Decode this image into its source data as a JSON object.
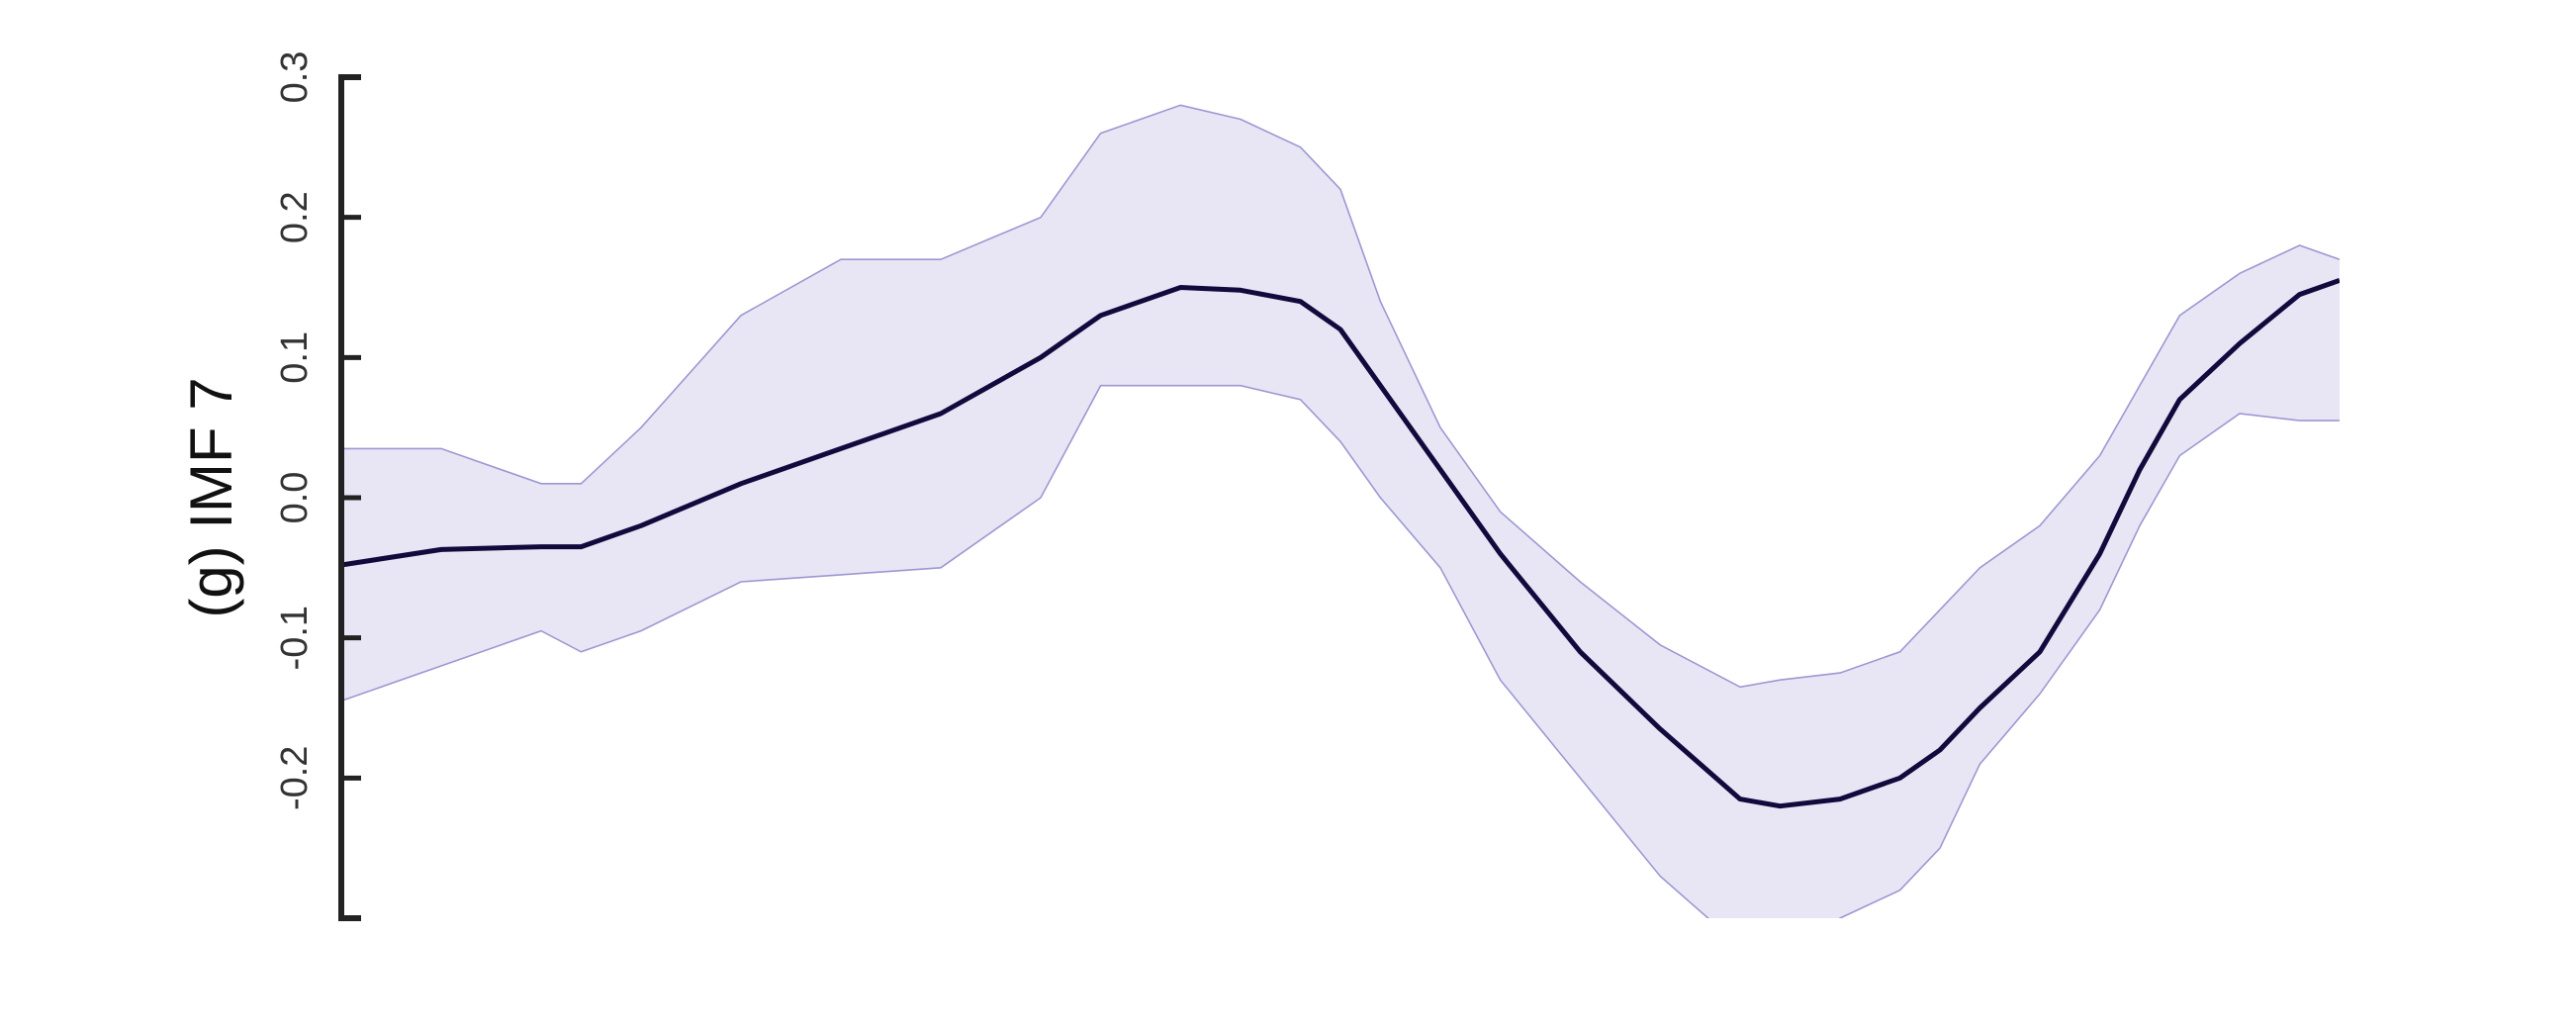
{
  "chart_data": {
    "type": "line",
    "title": "",
    "xlabel": "",
    "ylabel": "(g) IMF 7",
    "ylim": [
      -0.3,
      0.3
    ],
    "yticks": [
      -0.2,
      -0.1,
      0.0,
      0.1,
      0.2,
      0.3
    ],
    "ytick_labels": [
      "-0.2",
      "-0.1",
      "0.0",
      "0.1",
      "0.2",
      "0.3"
    ],
    "xlim": [
      0,
      100
    ],
    "grid": false,
    "x_axis_visible": false,
    "colors": {
      "line": "#120a3d",
      "band_fill": "#e8e6f5",
      "band_edge": "#9c98d2",
      "axis": "#222222"
    },
    "series": [
      {
        "role": "mean",
        "x": [
          0,
          5,
          10,
          12,
          15,
          20,
          25,
          30,
          35,
          38,
          42,
          45,
          48,
          50,
          52,
          55,
          58,
          62,
          66,
          70,
          72,
          75,
          78,
          80,
          82,
          85,
          88,
          90,
          92,
          95,
          98,
          100
        ],
        "values": [
          -0.048,
          -0.037,
          -0.035,
          -0.035,
          -0.02,
          0.01,
          0.035,
          0.06,
          0.1,
          0.13,
          0.15,
          0.148,
          0.14,
          0.12,
          0.08,
          0.02,
          -0.04,
          -0.11,
          -0.165,
          -0.215,
          -0.22,
          -0.215,
          -0.2,
          -0.18,
          -0.15,
          -0.11,
          -0.04,
          0.02,
          0.07,
          0.11,
          0.145,
          0.155
        ]
      },
      {
        "role": "band-upper",
        "x": [
          0,
          5,
          10,
          12,
          15,
          20,
          25,
          30,
          35,
          38,
          42,
          45,
          48,
          50,
          52,
          55,
          58,
          62,
          66,
          70,
          72,
          75,
          78,
          80,
          82,
          85,
          88,
          90,
          92,
          95,
          98,
          100
        ],
        "values": [
          0.035,
          0.035,
          0.01,
          0.01,
          0.05,
          0.13,
          0.17,
          0.17,
          0.2,
          0.26,
          0.28,
          0.27,
          0.25,
          0.22,
          0.14,
          0.05,
          -0.01,
          -0.06,
          -0.105,
          -0.135,
          -0.13,
          -0.125,
          -0.11,
          -0.08,
          -0.05,
          -0.02,
          0.03,
          0.08,
          0.13,
          0.16,
          0.18,
          0.17
        ]
      },
      {
        "role": "band-lower",
        "x": [
          0,
          5,
          10,
          12,
          15,
          20,
          25,
          30,
          35,
          38,
          42,
          45,
          48,
          50,
          52,
          55,
          58,
          62,
          66,
          70,
          72,
          75,
          78,
          80,
          82,
          85,
          88,
          90,
          92,
          95,
          98,
          100
        ],
        "values": [
          -0.145,
          -0.12,
          -0.095,
          -0.11,
          -0.095,
          -0.06,
          -0.055,
          -0.05,
          0.0,
          0.08,
          0.08,
          0.08,
          0.07,
          0.04,
          0.0,
          -0.05,
          -0.13,
          -0.2,
          -0.27,
          -0.32,
          -0.33,
          -0.3,
          -0.28,
          -0.25,
          -0.19,
          -0.14,
          -0.08,
          -0.02,
          0.03,
          0.06,
          0.055,
          0.055
        ]
      }
    ]
  }
}
